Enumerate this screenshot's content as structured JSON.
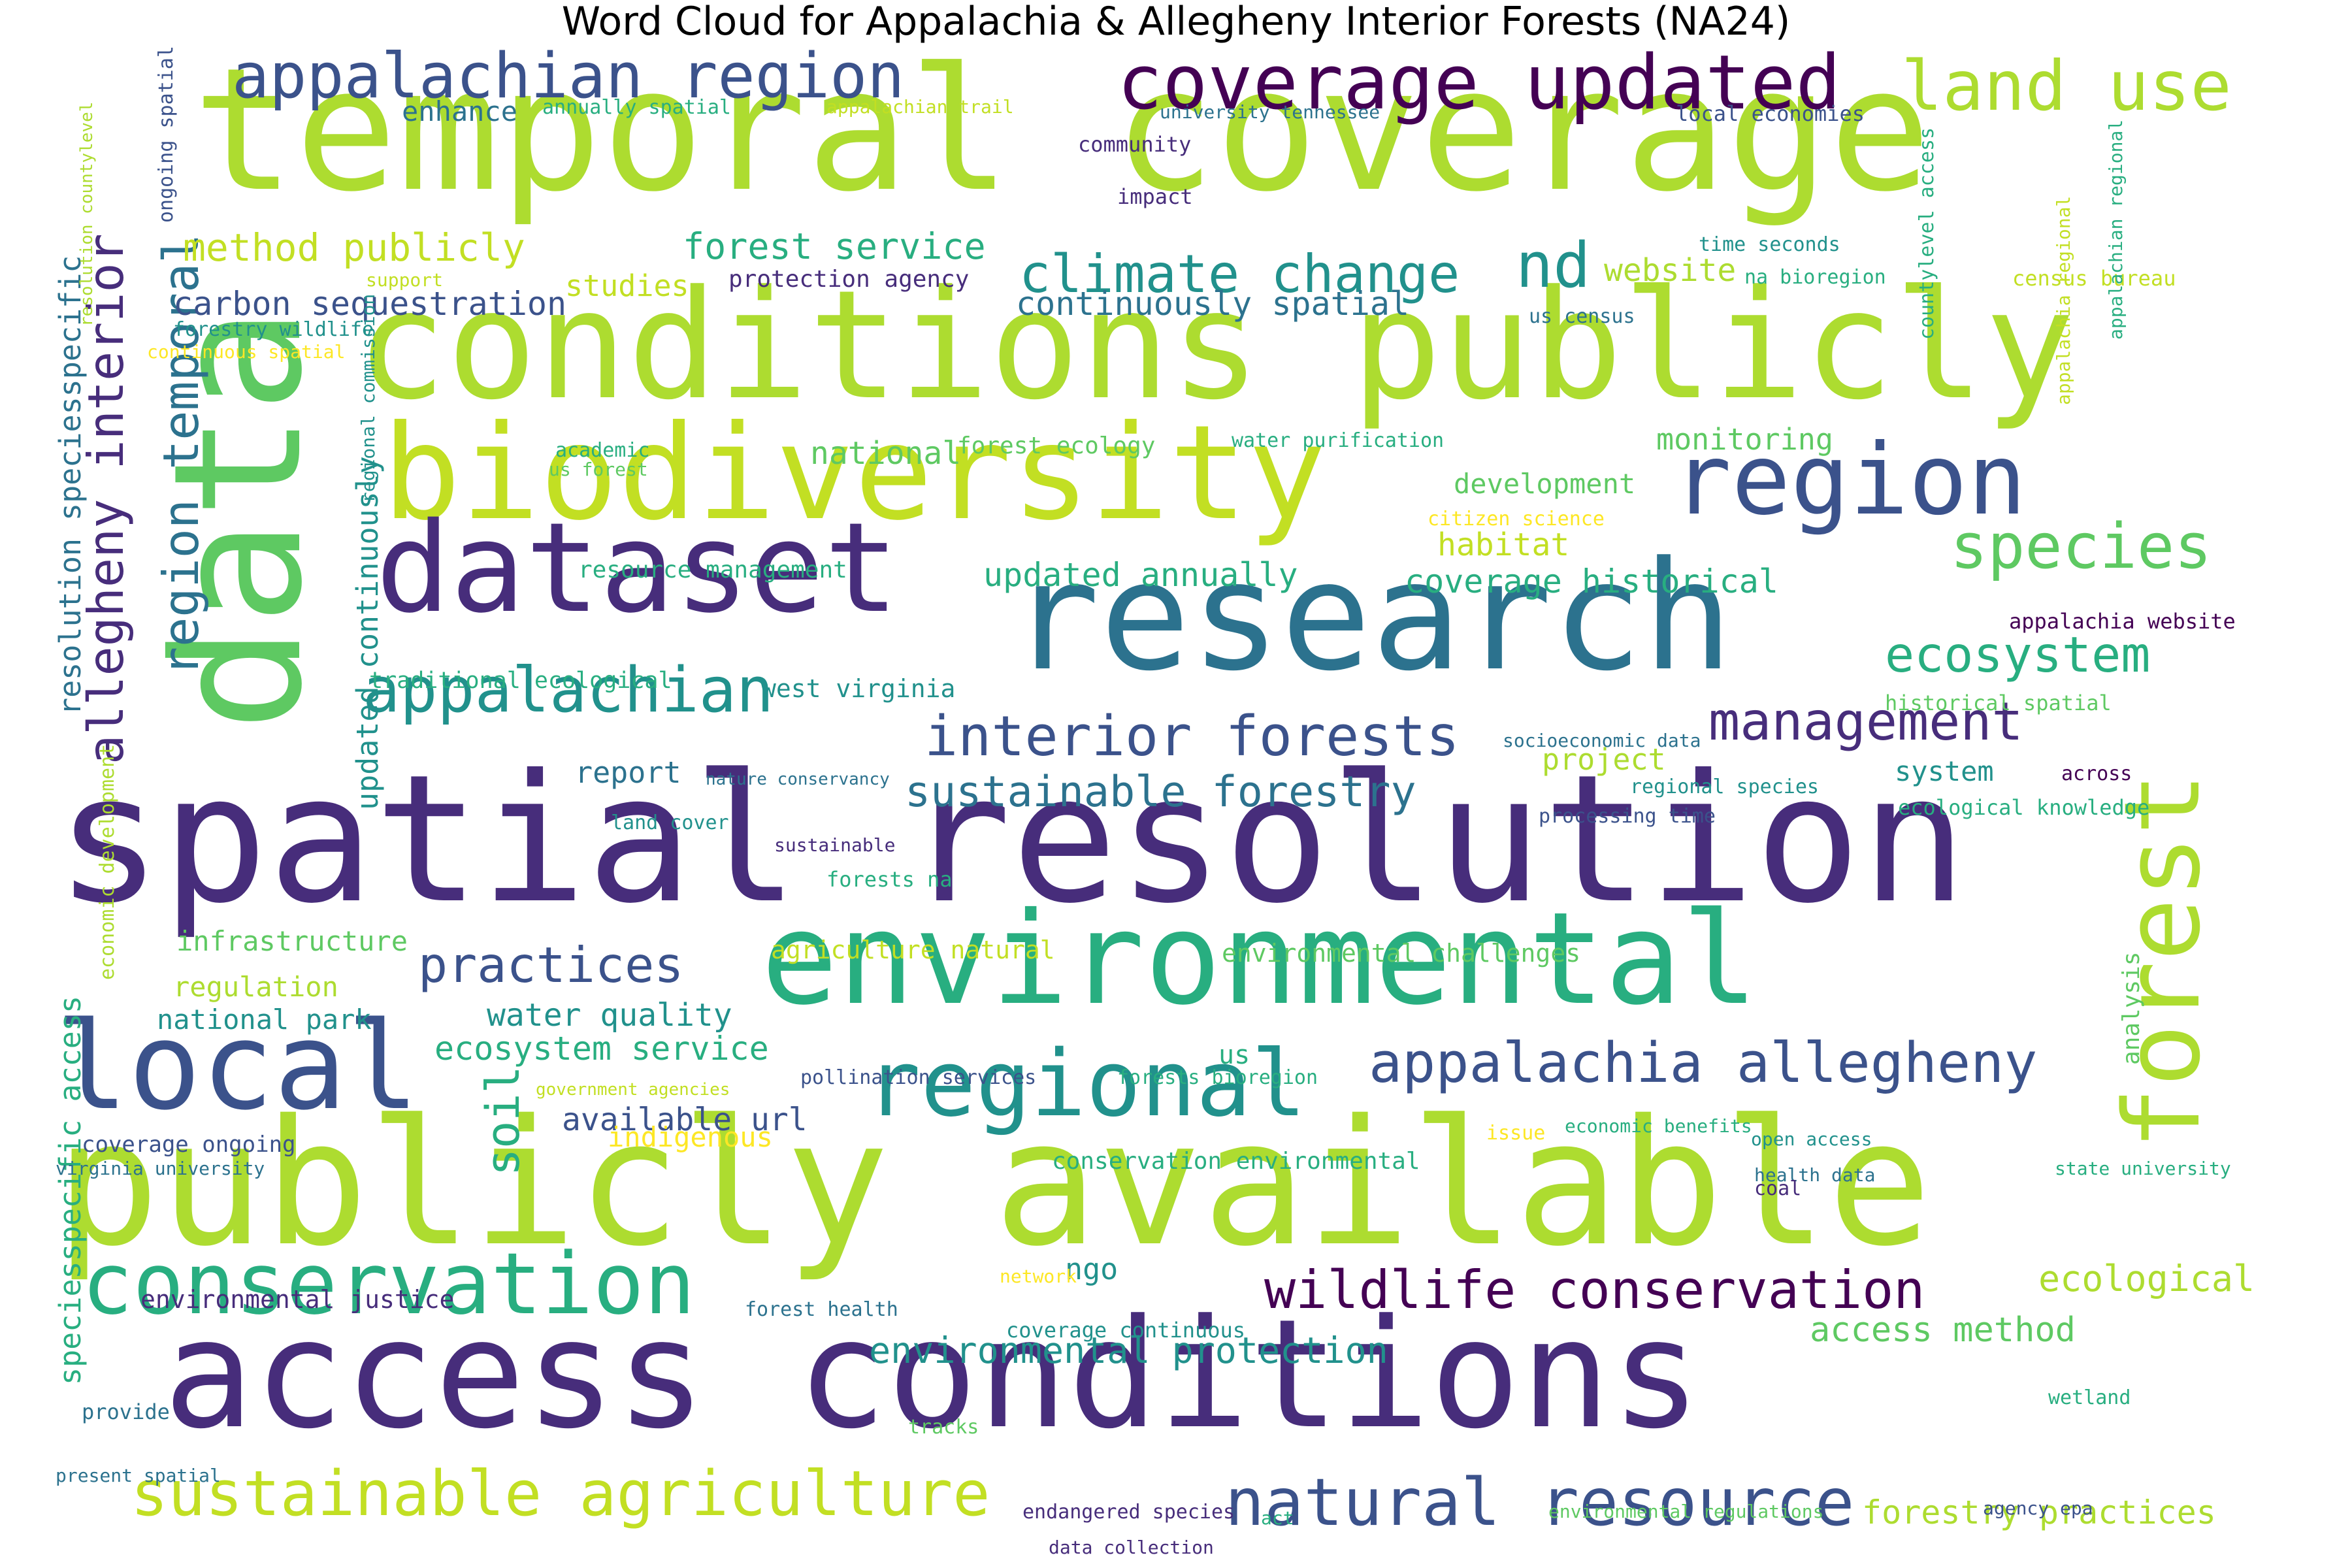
{
  "title": "Word Cloud for Appalachia & Allegheny Interior Forests (NA24)",
  "palette": {
    "dark_purple": "#440154",
    "purple": "#472d7b",
    "indigo": "#3b528b",
    "blue": "#2c728e",
    "teal_blue": "#21918c",
    "teal": "#28ae80",
    "green": "#5ec962",
    "light_green": "#addc30",
    "yellow_green": "#c2df23",
    "yellow": "#fde725"
  },
  "words": [
    {
      "t": "temporal coverage",
      "c": "light_green"
    },
    {
      "t": "spatial resolution",
      "c": "purple"
    },
    {
      "t": "publicly available",
      "c": "light_green"
    },
    {
      "t": "conditions publicly",
      "c": "light_green"
    },
    {
      "t": "access conditions",
      "c": "purple"
    },
    {
      "t": "data",
      "c": "green"
    },
    {
      "t": "research",
      "c": "blue"
    },
    {
      "t": "biodiversity",
      "c": "yellow_green"
    },
    {
      "t": "environmental",
      "c": "teal"
    },
    {
      "t": "dataset",
      "c": "purple"
    },
    {
      "t": "local",
      "c": "indigo"
    },
    {
      "t": "conservation",
      "c": "teal"
    },
    {
      "t": "regional",
      "c": "teal_blue"
    },
    {
      "t": "region",
      "c": "indigo"
    },
    {
      "t": "forest",
      "c": "light_green"
    },
    {
      "t": "coverage updated",
      "c": "dark_purple"
    },
    {
      "t": "appalachian region",
      "c": "indigo"
    },
    {
      "t": "land use",
      "c": "light_green"
    },
    {
      "t": "natural resource",
      "c": "indigo"
    },
    {
      "t": "sustainable agriculture",
      "c": "yellow_green"
    },
    {
      "t": "appalachian",
      "c": "teal_blue"
    },
    {
      "t": "species",
      "c": "green"
    },
    {
      "t": "interior forests",
      "c": "indigo"
    },
    {
      "t": "wildlife conservation",
      "c": "dark_purple"
    },
    {
      "t": "appalachia allegheny",
      "c": "indigo"
    },
    {
      "t": "climate change",
      "c": "teal_blue"
    },
    {
      "t": "allegheny interior",
      "c": "purple"
    },
    {
      "t": "region temporal",
      "c": "blue"
    },
    {
      "t": "ecosystem",
      "c": "teal"
    },
    {
      "t": "management",
      "c": "purple"
    },
    {
      "t": "nd",
      "c": "teal_blue"
    },
    {
      "t": "practices",
      "c": "indigo"
    },
    {
      "t": "sustainable forestry",
      "c": "blue"
    },
    {
      "t": "environmental protection",
      "c": "teal_blue"
    },
    {
      "t": "method publicly",
      "c": "yellow_green"
    },
    {
      "t": "forest service",
      "c": "teal"
    },
    {
      "t": "carbon sequestration",
      "c": "indigo"
    },
    {
      "t": "continuously spatial",
      "c": "blue"
    },
    {
      "t": "updated annually",
      "c": "teal"
    },
    {
      "t": "coverage historical",
      "c": "teal"
    },
    {
      "t": "resolution speciesspecific",
      "c": "blue"
    },
    {
      "t": "updated continuously",
      "c": "teal_blue"
    },
    {
      "t": "soil",
      "c": "teal"
    },
    {
      "t": "ecosystem service",
      "c": "teal"
    },
    {
      "t": "water quality",
      "c": "teal_blue"
    },
    {
      "t": "available url",
      "c": "indigo"
    },
    {
      "t": "speciesspecific access",
      "c": "teal"
    },
    {
      "t": "access method",
      "c": "green"
    },
    {
      "t": "forestry practices",
      "c": "light_green"
    },
    {
      "t": "ecological",
      "c": "light_green"
    },
    {
      "t": "national park",
      "c": "teal_blue"
    },
    {
      "t": "regulation",
      "c": "light_green"
    },
    {
      "t": "infrastructure",
      "c": "green"
    },
    {
      "t": "monitoring",
      "c": "green"
    },
    {
      "t": "development",
      "c": "green"
    },
    {
      "t": "habitat",
      "c": "yellow_green"
    },
    {
      "t": "website",
      "c": "light_green"
    },
    {
      "t": "enhance",
      "c": "blue"
    },
    {
      "t": "studies",
      "c": "yellow_green"
    },
    {
      "t": "national",
      "c": "green"
    },
    {
      "t": "report",
      "c": "blue"
    },
    {
      "t": "project",
      "c": "light_green"
    },
    {
      "t": "system",
      "c": "teal_blue"
    },
    {
      "t": "ngo",
      "c": "teal_blue"
    },
    {
      "t": "indigenous",
      "c": "yellow"
    },
    {
      "t": "environmental justice",
      "c": "purple"
    },
    {
      "t": "coverage ongoing",
      "c": "indigo"
    },
    {
      "t": "protection agency",
      "c": "purple"
    },
    {
      "t": "forest ecology",
      "c": "green"
    },
    {
      "t": "resource management",
      "c": "teal"
    },
    {
      "t": "traditional ecological",
      "c": "teal"
    },
    {
      "t": "west virginia",
      "c": "teal_blue"
    },
    {
      "t": "agriculture natural",
      "c": "yellow_green"
    },
    {
      "t": "environmental challenges",
      "c": "green"
    },
    {
      "t": "conservation environmental",
      "c": "teal"
    },
    {
      "t": "economic development",
      "c": "light_green"
    },
    {
      "t": "analysis",
      "c": "green"
    },
    {
      "t": "appalachia website",
      "c": "dark_purple"
    },
    {
      "t": "historical spatial",
      "c": "green"
    },
    {
      "t": "ecological knowledge",
      "c": "teal"
    },
    {
      "t": "community",
      "c": "purple"
    },
    {
      "t": "impact",
      "c": "purple"
    },
    {
      "t": "annually spatial",
      "c": "teal"
    },
    {
      "t": "appalachian trail",
      "c": "yellow_green"
    },
    {
      "t": "university tennessee",
      "c": "blue"
    },
    {
      "t": "local economies",
      "c": "indigo"
    },
    {
      "t": "time seconds",
      "c": "teal_blue"
    },
    {
      "t": "na bioregion",
      "c": "teal"
    },
    {
      "t": "census bureau",
      "c": "yellow_green"
    },
    {
      "t": "us census",
      "c": "blue"
    },
    {
      "t": "support",
      "c": "yellow_green"
    },
    {
      "t": "forestry wildlife",
      "c": "teal_blue"
    },
    {
      "t": "continuous spatial",
      "c": "yellow"
    },
    {
      "t": "ongoing spatial",
      "c": "indigo"
    },
    {
      "t": "resolution countylevel",
      "c": "light_green"
    },
    {
      "t": "countylevel access",
      "c": "teal"
    },
    {
      "t": "appalachian regional",
      "c": "teal"
    },
    {
      "t": "appalachia regional",
      "c": "yellow_green"
    },
    {
      "t": "academic",
      "c": "teal"
    },
    {
      "t": "us forest",
      "c": "green"
    },
    {
      "t": "regional commission",
      "c": "teal_blue"
    },
    {
      "t": "water purification",
      "c": "teal"
    },
    {
      "t": "citizen science",
      "c": "yellow"
    },
    {
      "t": "socioeconomic data",
      "c": "blue"
    },
    {
      "t": "regional species",
      "c": "teal_blue"
    },
    {
      "t": "across",
      "c": "dark_purple"
    },
    {
      "t": "nature conservancy",
      "c": "blue"
    },
    {
      "t": "land cover",
      "c": "teal_blue"
    },
    {
      "t": "sustainable",
      "c": "purple"
    },
    {
      "t": "forests na",
      "c": "teal"
    },
    {
      "t": "processing time",
      "c": "indigo"
    },
    {
      "t": "pollination services",
      "c": "indigo"
    },
    {
      "t": "forests bioregion",
      "c": "teal"
    },
    {
      "t": "us",
      "c": "teal"
    },
    {
      "t": "government agencies",
      "c": "yellow_green"
    },
    {
      "t": "issue",
      "c": "yellow"
    },
    {
      "t": "economic benefits",
      "c": "teal"
    },
    {
      "t": "open access",
      "c": "teal_blue"
    },
    {
      "t": "virginia university",
      "c": "blue"
    },
    {
      "t": "health data",
      "c": "blue"
    },
    {
      "t": "state university",
      "c": "teal"
    },
    {
      "t": "coal",
      "c": "purple"
    },
    {
      "t": "network",
      "c": "yellow"
    },
    {
      "t": "forest health",
      "c": "blue"
    },
    {
      "t": "coverage continuous",
      "c": "teal_blue"
    },
    {
      "t": "provide",
      "c": "blue"
    },
    {
      "t": "tracks",
      "c": "green"
    },
    {
      "t": "wetland",
      "c": "teal"
    },
    {
      "t": "present spatial",
      "c": "blue"
    },
    {
      "t": "endangered species",
      "c": "purple"
    },
    {
      "t": "act",
      "c": "teal"
    },
    {
      "t": "environmental regulations",
      "c": "green"
    },
    {
      "t": "agency epa",
      "c": "indigo"
    },
    {
      "t": "data collection",
      "c": "purple"
    }
  ]
}
